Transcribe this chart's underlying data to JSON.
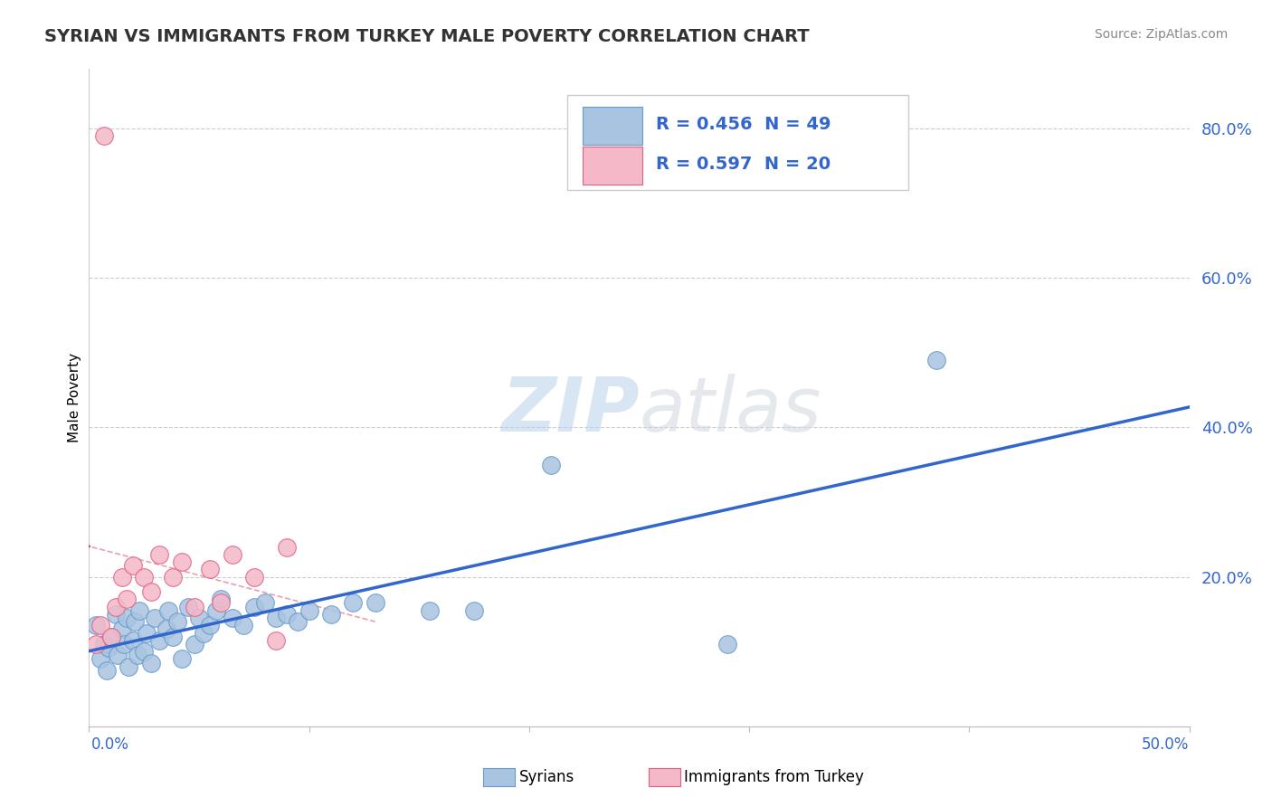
{
  "title": "SYRIAN VS IMMIGRANTS FROM TURKEY MALE POVERTY CORRELATION CHART",
  "source_text": "Source: ZipAtlas.com",
  "ylabel": "Male Poverty",
  "yticks": [
    0.0,
    0.2,
    0.4,
    0.6,
    0.8
  ],
  "ytick_labels": [
    "",
    "20.0%",
    "40.0%",
    "60.0%",
    "80.0%"
  ],
  "xlim": [
    0.0,
    0.5
  ],
  "ylim": [
    0.0,
    0.88
  ],
  "syrians_x": [
    0.003,
    0.005,
    0.007,
    0.008,
    0.009,
    0.01,
    0.012,
    0.013,
    0.015,
    0.016,
    0.017,
    0.018,
    0.02,
    0.021,
    0.022,
    0.023,
    0.025,
    0.026,
    0.028,
    0.03,
    0.032,
    0.035,
    0.036,
    0.038,
    0.04,
    0.042,
    0.045,
    0.048,
    0.05,
    0.052,
    0.055,
    0.058,
    0.06,
    0.065,
    0.07,
    0.075,
    0.08,
    0.085,
    0.09,
    0.095,
    0.1,
    0.11,
    0.12,
    0.13,
    0.155,
    0.175,
    0.21,
    0.29,
    0.385
  ],
  "syrians_y": [
    0.135,
    0.09,
    0.11,
    0.075,
    0.105,
    0.12,
    0.15,
    0.095,
    0.13,
    0.11,
    0.145,
    0.08,
    0.115,
    0.14,
    0.095,
    0.155,
    0.1,
    0.125,
    0.085,
    0.145,
    0.115,
    0.13,
    0.155,
    0.12,
    0.14,
    0.09,
    0.16,
    0.11,
    0.145,
    0.125,
    0.135,
    0.155,
    0.17,
    0.145,
    0.135,
    0.16,
    0.165,
    0.145,
    0.15,
    0.14,
    0.155,
    0.15,
    0.165,
    0.165,
    0.155,
    0.155,
    0.35,
    0.11,
    0.49
  ],
  "turkey_x": [
    0.003,
    0.005,
    0.007,
    0.01,
    0.012,
    0.015,
    0.017,
    0.02,
    0.025,
    0.028,
    0.032,
    0.038,
    0.042,
    0.048,
    0.055,
    0.06,
    0.065,
    0.075,
    0.085,
    0.09
  ],
  "turkey_y": [
    0.11,
    0.135,
    0.79,
    0.12,
    0.16,
    0.2,
    0.17,
    0.215,
    0.2,
    0.18,
    0.23,
    0.2,
    0.22,
    0.16,
    0.21,
    0.165,
    0.23,
    0.2,
    0.115,
    0.24
  ],
  "syrians_color": "#a8c4e0",
  "turkey_color": "#f4b8c8",
  "syrians_edge_color": "#6699cc",
  "turkey_edge_color": "#e06080",
  "blue_line_color": "#3366cc",
  "pink_line_color": "#cc4466",
  "diag_line_color": "#e8a0b0",
  "R_syrians": 0.456,
  "N_syrians": 49,
  "R_turkey": 0.597,
  "N_turkey": 20,
  "legend1_label": "Syrians",
  "legend2_label": "Immigrants from Turkey",
  "background_color": "#ffffff",
  "grid_color": "#cccccc"
}
